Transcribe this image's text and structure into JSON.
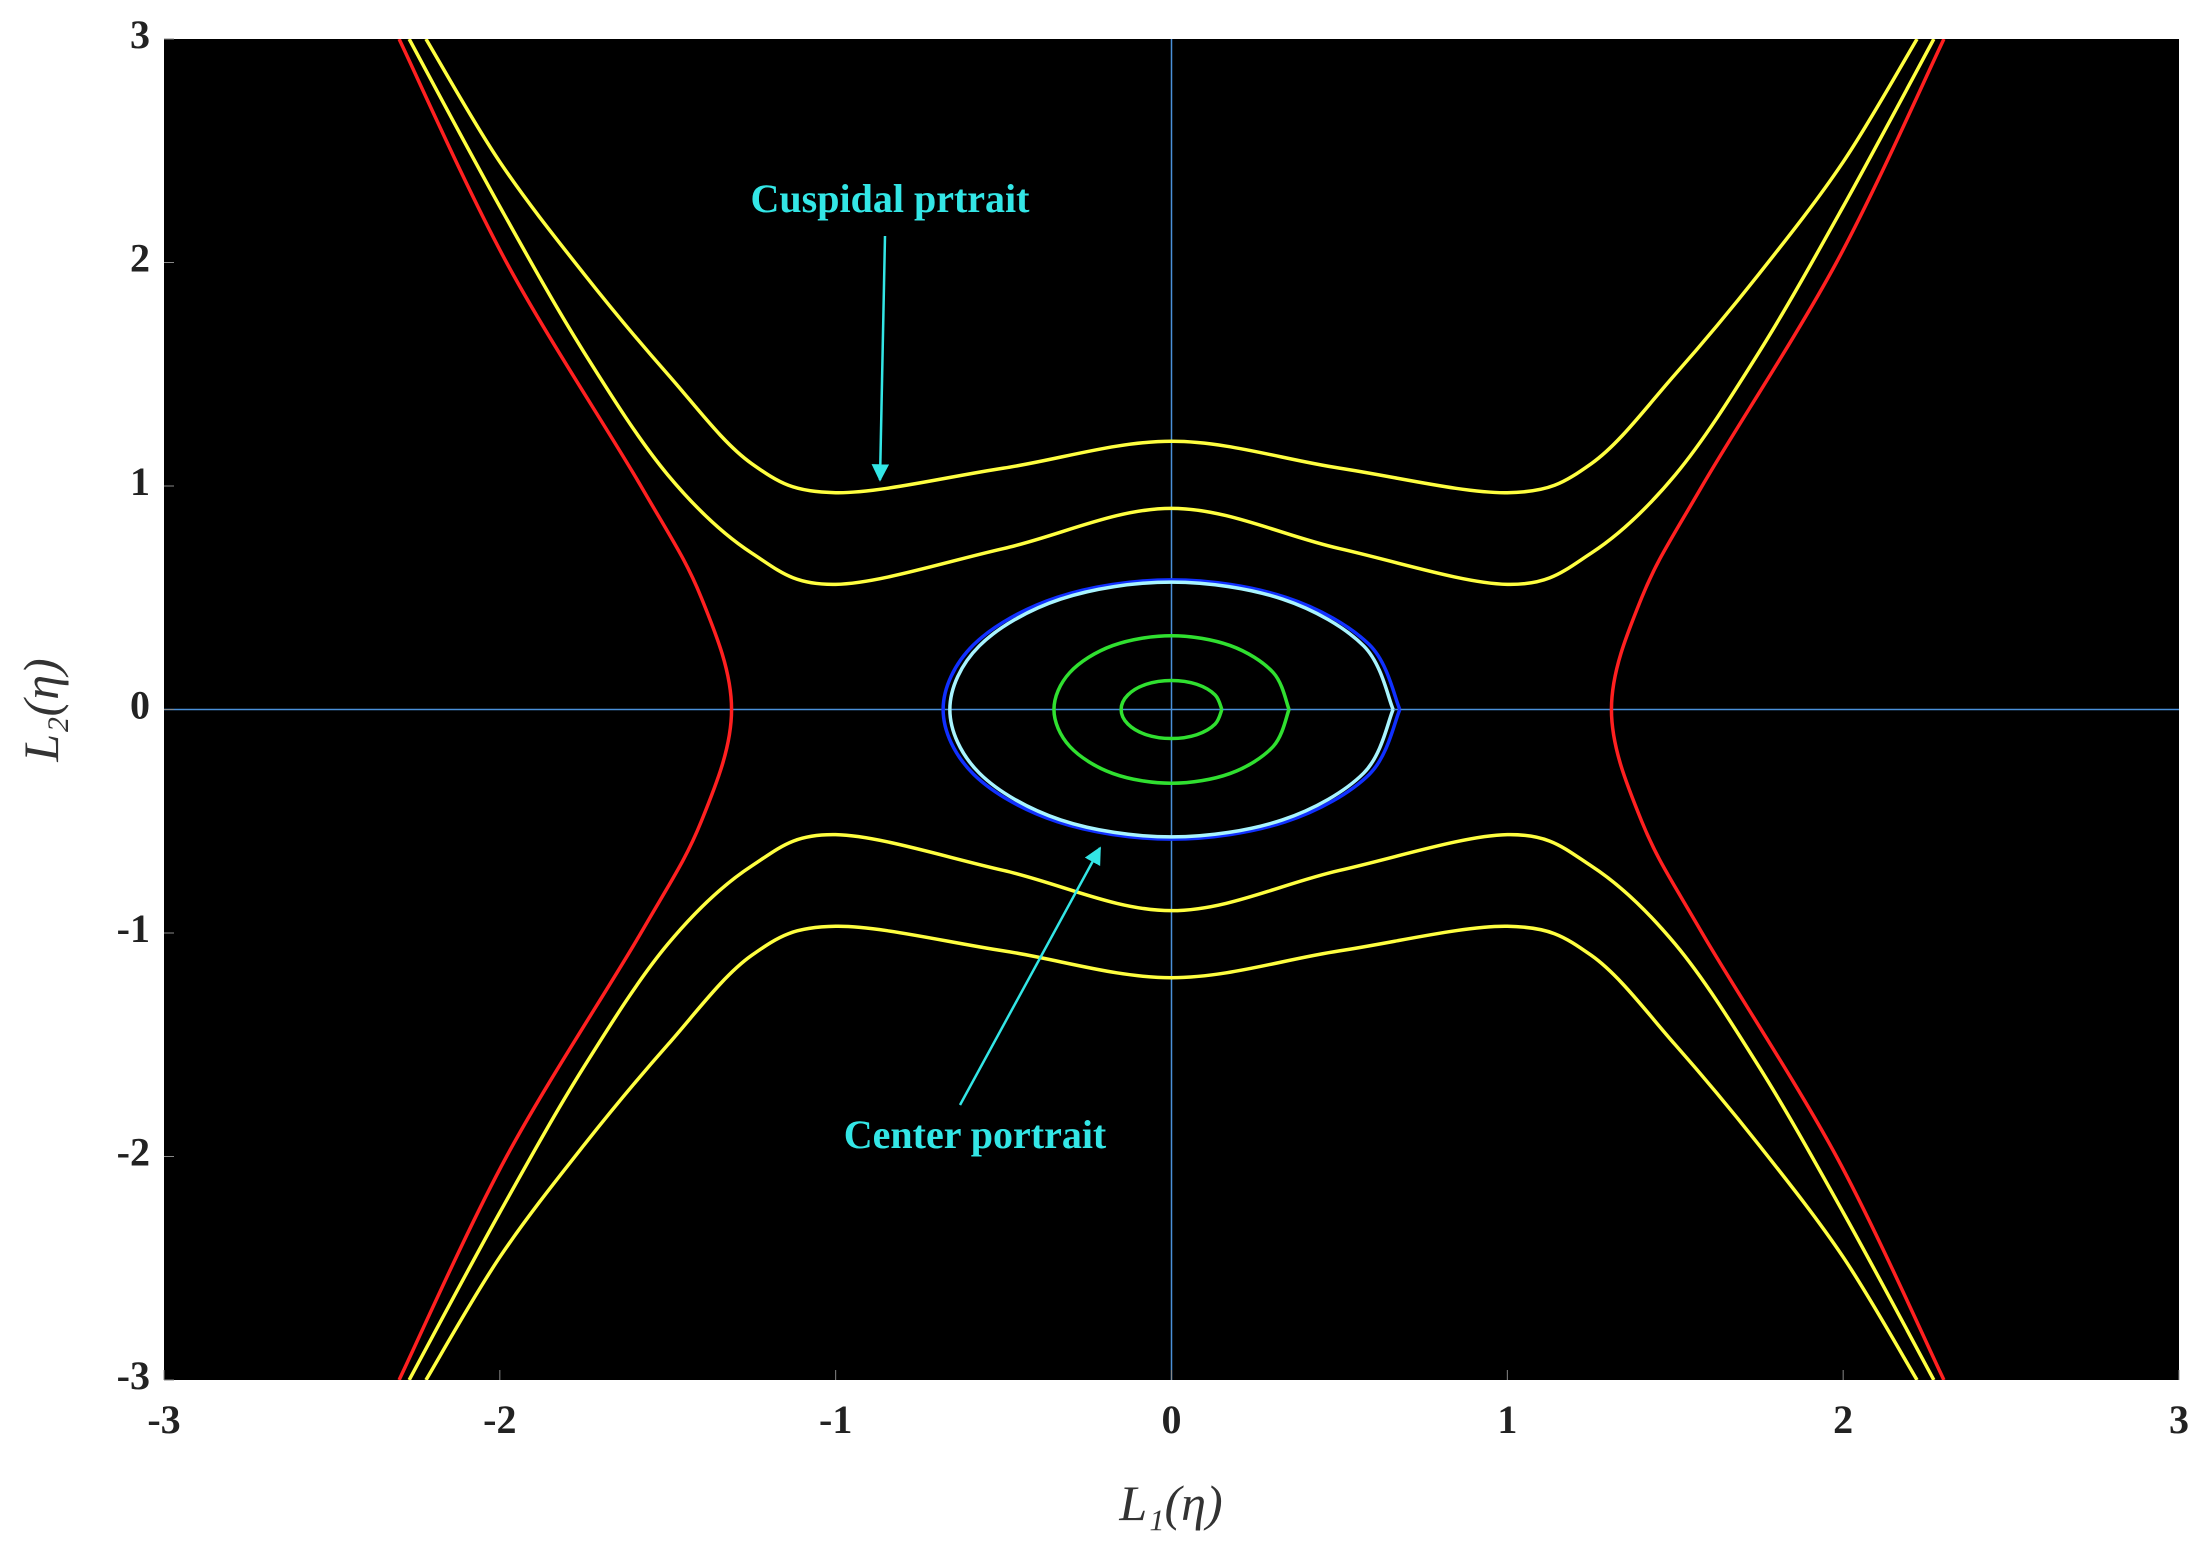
{
  "chart_data": {
    "type": "line",
    "xlabel": "L₁(η)",
    "ylabel": "L₂(η)",
    "xlim": [
      -3,
      3
    ],
    "ylim": [
      -3,
      3
    ],
    "xticks": [
      -3,
      -2,
      -1,
      0,
      1,
      2,
      3
    ],
    "yticks": [
      -3,
      -2,
      -1,
      0,
      1,
      2,
      3
    ],
    "background": "#000000",
    "axis_line_color": "#4a90d9",
    "annotations": [
      {
        "text": "Cuspidal prtrait",
        "color": "#33e6e6"
      },
      {
        "text": "Center portrait",
        "color": "#33e6e6"
      }
    ],
    "series": [
      {
        "color": "#ff2020",
        "x": [
          -2.3,
          -1.98,
          -1.58,
          -1.4,
          -1.31,
          -1.4,
          -1.58,
          -1.98,
          -2.3
        ],
        "values": [
          -3,
          -2,
          -1,
          -0.5,
          0,
          0.5,
          1,
          2,
          3
        ]
      },
      {
        "color": "#ff2020",
        "x": [
          2.3,
          1.98,
          1.58,
          1.4,
          1.31,
          1.4,
          1.58,
          1.98,
          2.3
        ],
        "values": [
          -3,
          -2,
          -1,
          -0.5,
          0,
          0.5,
          1,
          2,
          3
        ]
      },
      {
        "color": "#ffff40",
        "x": [
          -2.22,
          -2,
          -1.75,
          -1.5,
          -1.25,
          -1,
          -0.5,
          0,
          0.5,
          1,
          1.25,
          1.5,
          1.75,
          2,
          2.22
        ],
        "values": [
          3,
          2.45,
          1.95,
          1.5,
          1.1,
          0.97,
          1.08,
          1.2,
          1.08,
          0.97,
          1.1,
          1.5,
          1.95,
          2.45,
          3
        ]
      },
      {
        "color": "#ffff40",
        "x": [
          -2.27,
          -2,
          -1.75,
          -1.5,
          -1.25,
          -1,
          -0.5,
          0,
          0.5,
          1,
          1.25,
          1.5,
          1.75,
          2,
          2.27
        ],
        "values": [
          3,
          2.25,
          1.6,
          1.05,
          0.7,
          0.56,
          0.72,
          0.9,
          0.72,
          0.56,
          0.7,
          1.05,
          1.6,
          2.25,
          3
        ]
      },
      {
        "color": "#ffff40",
        "x": [
          -2.27,
          -2,
          -1.75,
          -1.5,
          -1.25,
          -1,
          -0.5,
          0,
          0.5,
          1,
          1.25,
          1.5,
          1.75,
          2,
          2.27
        ],
        "values": [
          -3,
          -2.25,
          -1.6,
          -1.05,
          -0.7,
          -0.56,
          -0.72,
          -0.9,
          -0.72,
          -0.56,
          -0.7,
          -1.05,
          -1.6,
          -2.25,
          -3
        ]
      },
      {
        "color": "#ffff40",
        "x": [
          -2.22,
          -2,
          -1.75,
          -1.5,
          -1.25,
          -1,
          -0.5,
          0,
          0.5,
          1,
          1.25,
          1.5,
          1.75,
          2,
          2.22
        ],
        "values": [
          -3,
          -2.45,
          -1.95,
          -1.5,
          -1.1,
          -0.97,
          -1.08,
          -1.2,
          -1.08,
          -0.97,
          -1.1,
          -1.5,
          -1.95,
          -2.45,
          -3
        ]
      },
      {
        "color": "#1030ff",
        "x": [
          0.68,
          0.589,
          0.34,
          0,
          -0.34,
          -0.589,
          -0.68,
          -0.589,
          -0.34,
          0,
          0.34,
          0.589,
          0.68
        ],
        "values": [
          0,
          0.29,
          0.502,
          0.58,
          0.502,
          0.29,
          0,
          -0.29,
          -0.502,
          -0.58,
          -0.502,
          -0.29,
          0
        ]
      },
      {
        "color": "#a8f4ff",
        "x": [
          0.66,
          0.572,
          0.33,
          0,
          -0.33,
          -0.572,
          -0.66,
          -0.572,
          -0.33,
          0,
          0.33,
          0.572,
          0.66
        ],
        "values": [
          0,
          0.285,
          0.494,
          0.57,
          0.494,
          0.285,
          0,
          -0.285,
          -0.494,
          -0.57,
          -0.494,
          -0.285,
          0
        ]
      },
      {
        "color": "#30e030",
        "x": [
          0.35,
          0.303,
          0.175,
          0,
          -0.175,
          -0.303,
          -0.35,
          -0.303,
          -0.175,
          0,
          0.175,
          0.303,
          0.35
        ],
        "values": [
          0,
          0.165,
          0.286,
          0.33,
          0.286,
          0.165,
          0,
          -0.165,
          -0.286,
          -0.33,
          -0.286,
          -0.165,
          0
        ]
      },
      {
        "color": "#30e030",
        "x": [
          0.15,
          0.13,
          0.075,
          0,
          -0.075,
          -0.13,
          -0.15,
          -0.13,
          -0.075,
          0,
          0.075,
          0.13,
          0.15
        ],
        "values": [
          0,
          0.065,
          0.113,
          0.13,
          0.113,
          0.065,
          0,
          -0.065,
          -0.113,
          -0.13,
          -0.113,
          -0.065,
          0
        ]
      }
    ]
  }
}
